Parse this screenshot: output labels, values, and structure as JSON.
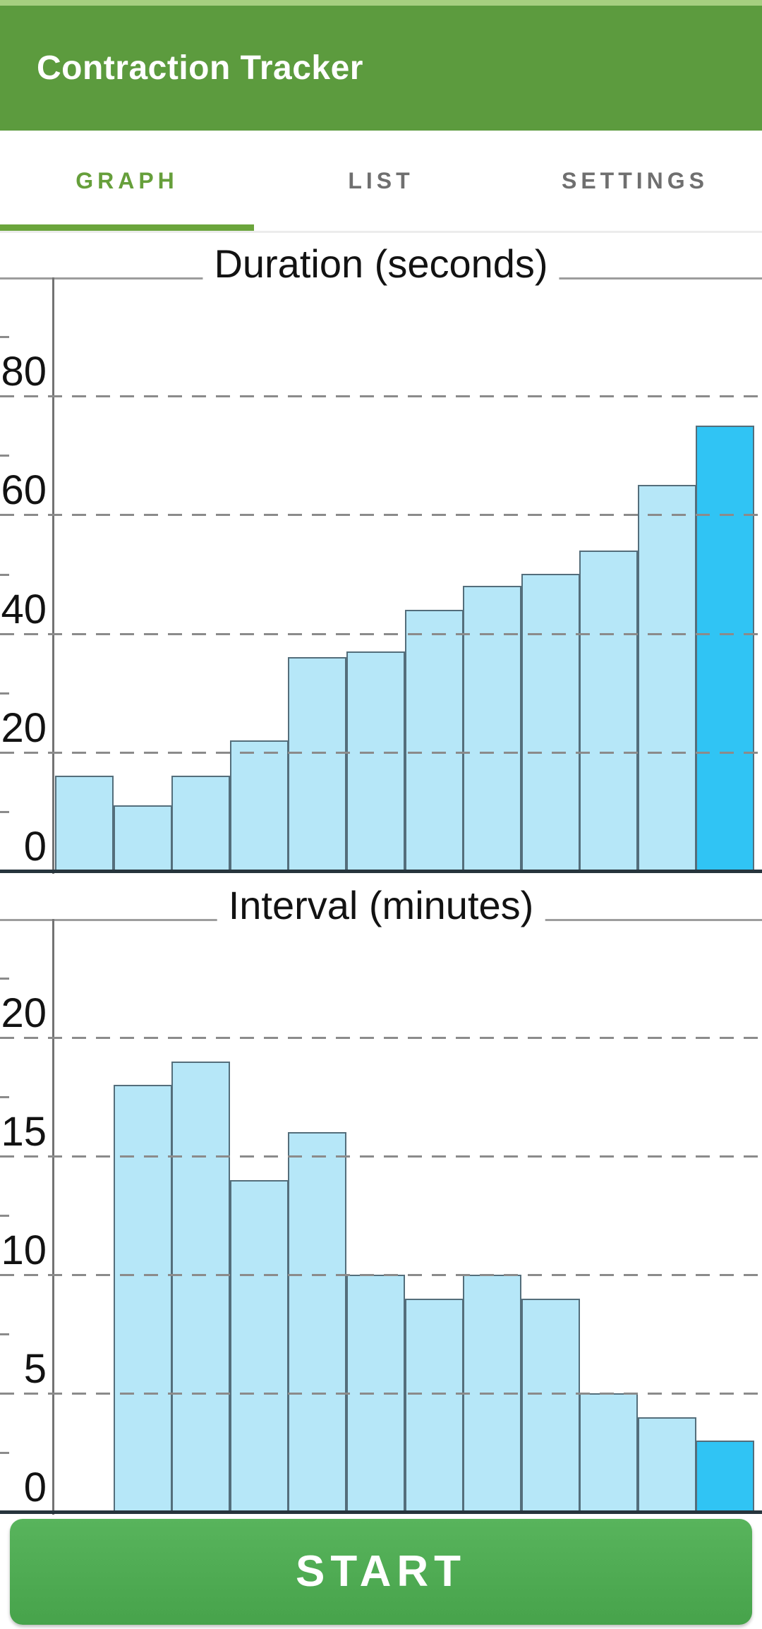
{
  "app": {
    "title": "Contraction Tracker"
  },
  "tabs": [
    {
      "label": "GRAPH",
      "active": true
    },
    {
      "label": "LIST",
      "active": false
    },
    {
      "label": "SETTINGS",
      "active": false
    }
  ],
  "action_button": {
    "label": "START"
  },
  "colors": {
    "status_strip": "#a6cf80",
    "appbar_green": "#5c9b3e",
    "tab_active": "#669f3b",
    "tab_inactive": "#6f6f6f",
    "tab_underline": "#6ba53c",
    "grid": "#8b8b8b",
    "axis": "#737373",
    "baseline": "#26343c",
    "bar_fill": "#b6e7f8",
    "bar_border": "#546e7b",
    "bar_highlight": "#30c4f4",
    "button_top": "#58b45c",
    "button_bottom": "#47a34b"
  },
  "chart_data": [
    {
      "type": "bar",
      "title": "Duration (seconds)",
      "values": [
        16,
        11,
        16,
        22,
        36,
        37,
        44,
        48,
        50,
        54,
        65,
        75
      ],
      "highlight_last_bar": true,
      "ylim": [
        0,
        100
      ],
      "y_ticks": [
        0,
        20,
        40,
        60,
        80
      ],
      "y_minor_ticks": [
        10,
        30,
        50,
        70,
        90
      ],
      "grid": "dashed-horizontal",
      "legend": "none",
      "x_tick_labels": "none"
    },
    {
      "type": "bar",
      "title": "Interval (minutes)",
      "values": [
        null,
        18,
        19,
        14,
        16,
        10,
        9,
        10,
        9,
        5,
        4,
        3
      ],
      "highlight_last_bar": true,
      "ylim": [
        0,
        25
      ],
      "y_ticks": [
        0,
        5,
        10,
        15,
        20
      ],
      "y_minor_ticks": [
        2.5,
        7.5,
        12.5,
        17.5,
        22.5
      ],
      "grid": "dashed-horizontal",
      "legend": "none",
      "x_tick_labels": "none"
    }
  ]
}
